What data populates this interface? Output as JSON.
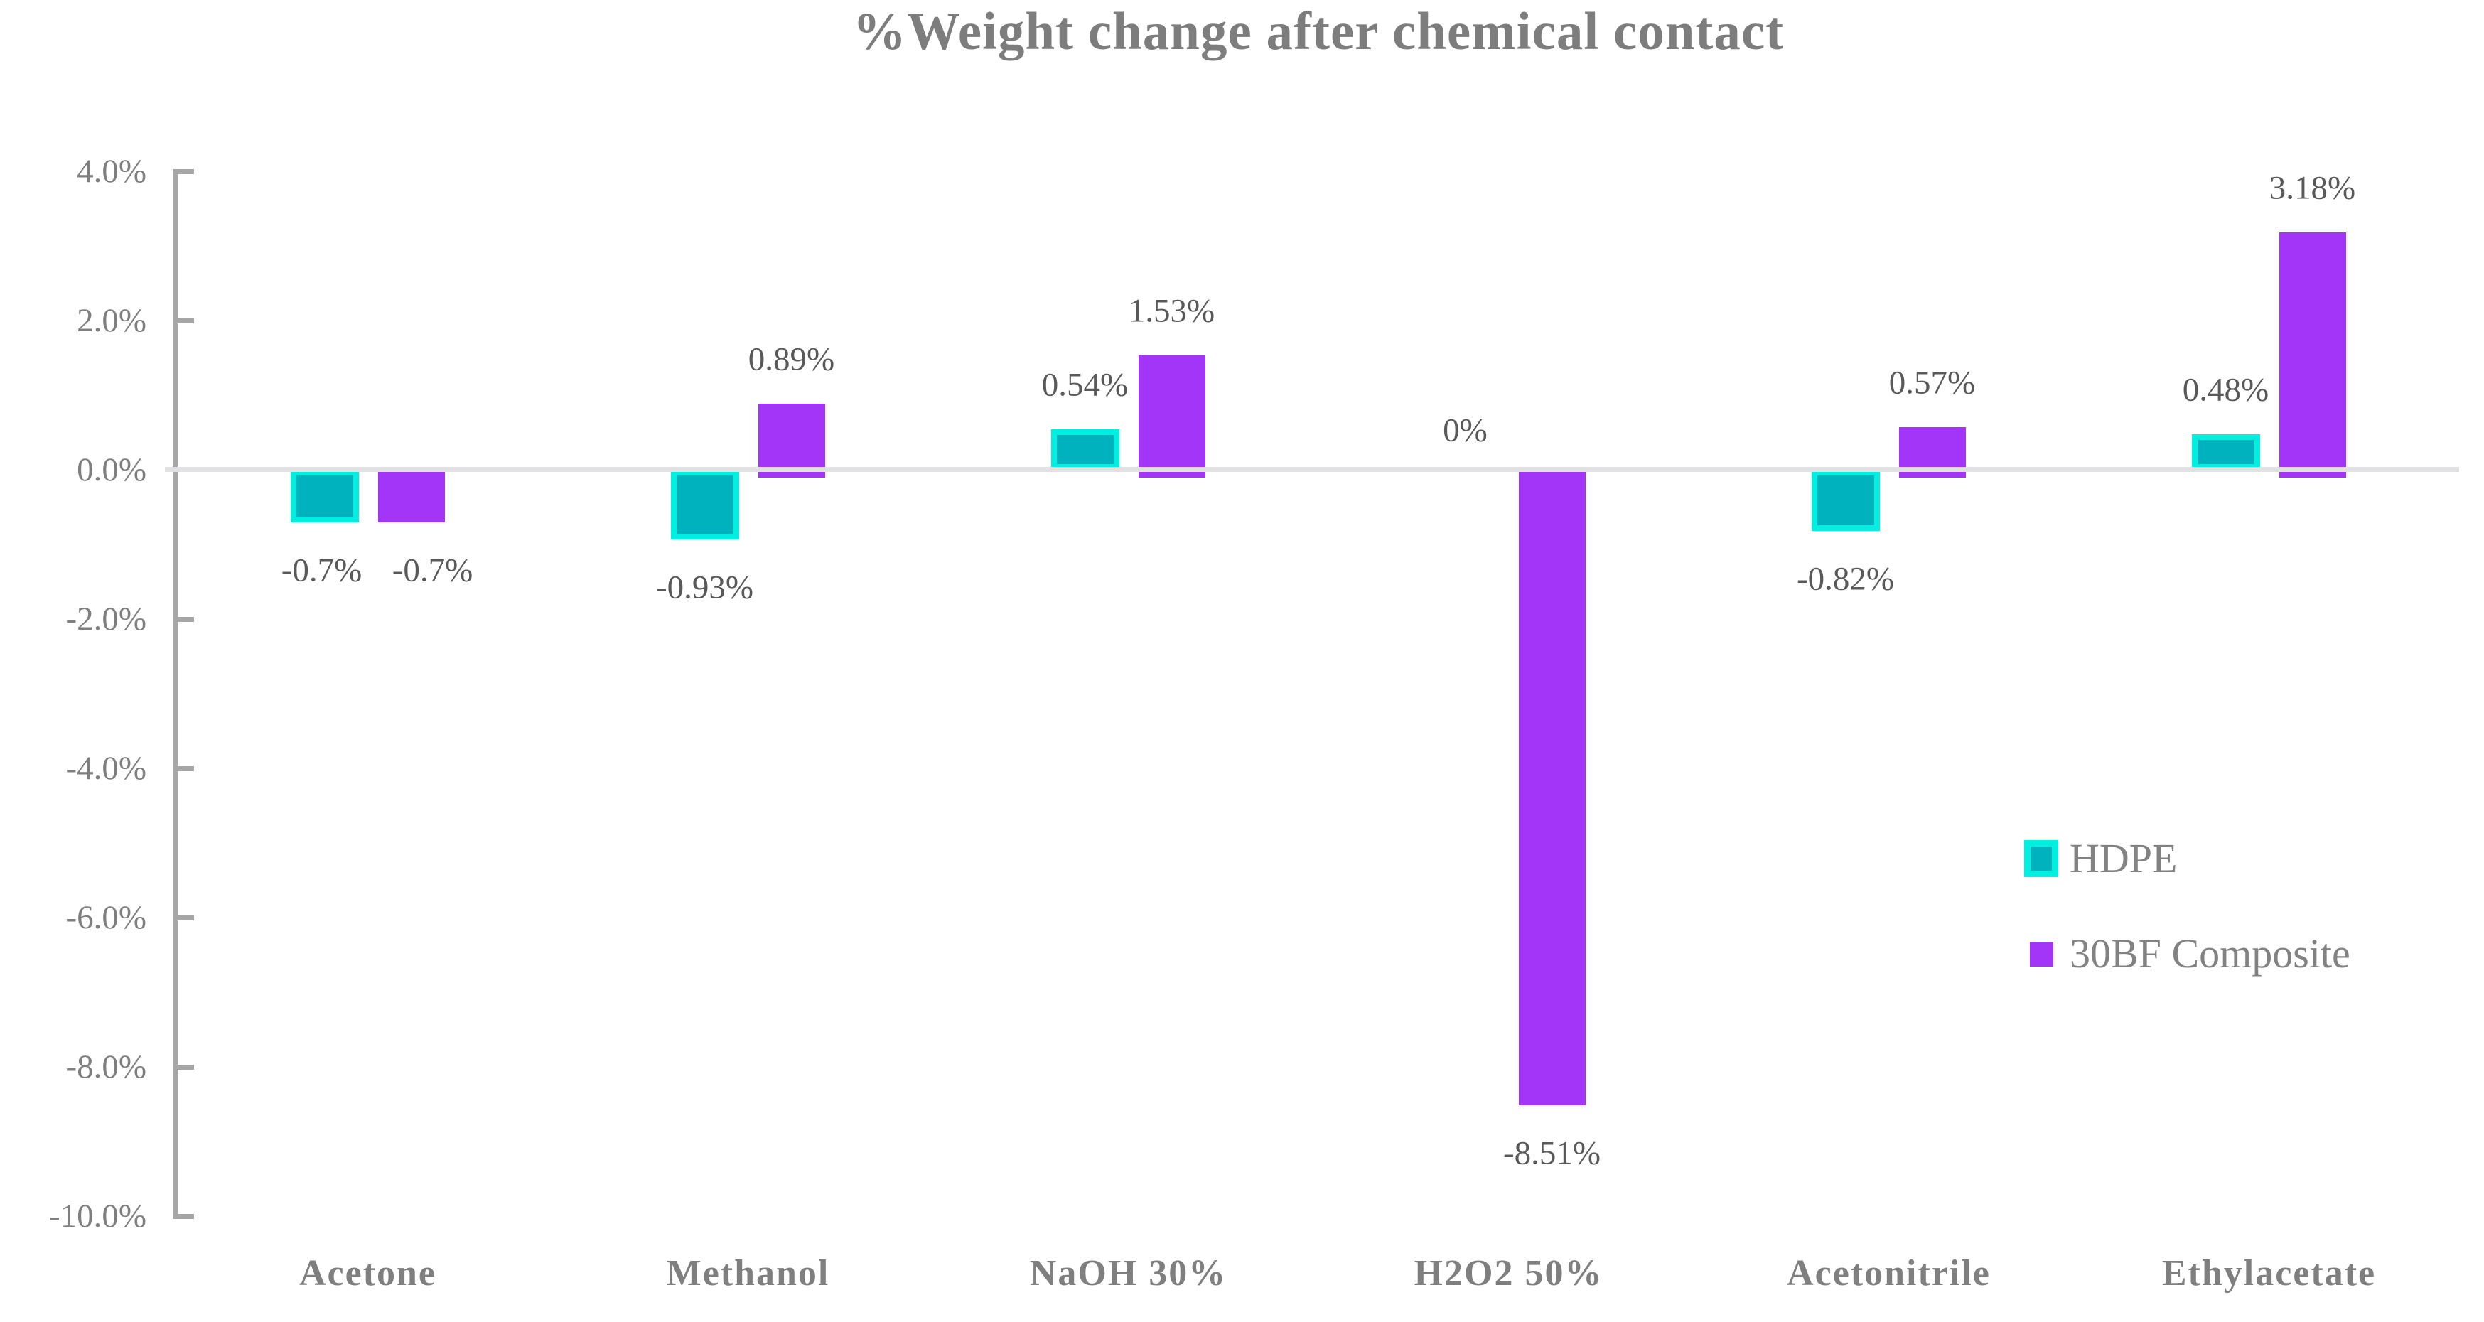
{
  "title": "%Weight change after chemical contact",
  "y_axis": {
    "ticks": [
      {
        "value": 4,
        "label": "4.0%"
      },
      {
        "value": 2,
        "label": "2.0%"
      },
      {
        "value": 0,
        "label": "0.0%"
      },
      {
        "value": -2,
        "label": "-2.0%"
      },
      {
        "value": -4,
        "label": "-4.0%"
      },
      {
        "value": -6,
        "label": "-6.0%"
      },
      {
        "value": -8,
        "label": "-8.0%"
      },
      {
        "value": -10,
        "label": "-10.0%"
      }
    ]
  },
  "legend": {
    "items": [
      {
        "label": "HDPE",
        "fill": "#00b2be",
        "border": "#00efe0"
      },
      {
        "label": "30BF Composite",
        "fill": "#a235f8",
        "border": ""
      }
    ]
  },
  "colors": {
    "hdpe_fill": "#00b2be",
    "hdpe_border": "#00efe0",
    "composite_fill": "#a235f8",
    "axis_gray": "#a6a6a6",
    "zero_gridline": "#e1e1e3",
    "title_text": "#7d7d7d",
    "axis_label_text": "#7f7f7f",
    "value_label_text": "#595959"
  },
  "chart_data": {
    "type": "bar",
    "title": "%Weight change after chemical contact",
    "xlabel": "",
    "ylabel": "",
    "categories": [
      "Acetone",
      "Methanol",
      "NaOH 30%",
      "H2O2 50%",
      "Acetonitrile",
      "Ethylacetate"
    ],
    "series": [
      {
        "name": "HDPE",
        "color": "#00b2be",
        "border_color": "#00efe0",
        "values": [
          -0.7,
          -0.93,
          0.54,
          0,
          -0.82,
          0.48
        ],
        "data_labels": [
          "-0.7%",
          "-0.93%",
          "0.54%",
          "0%",
          "-0.82%",
          "0.48%"
        ]
      },
      {
        "name": "30BF Composite",
        "color": "#a235f8",
        "border_color": "",
        "values": [
          -0.7,
          0.89,
          1.53,
          -8.51,
          0.57,
          3.18
        ],
        "data_labels": [
          "-0.7%",
          "0.89%",
          "1.53%",
          "-8.51%",
          "0.57%",
          "3.18%"
        ]
      }
    ],
    "ylim": [
      -10,
      4
    ],
    "ytick_step": 2,
    "ytick_format": "percent_one_decimal",
    "grid": "zero-line-only",
    "legend_position": "right-middle",
    "data_labels_shown": true
  }
}
